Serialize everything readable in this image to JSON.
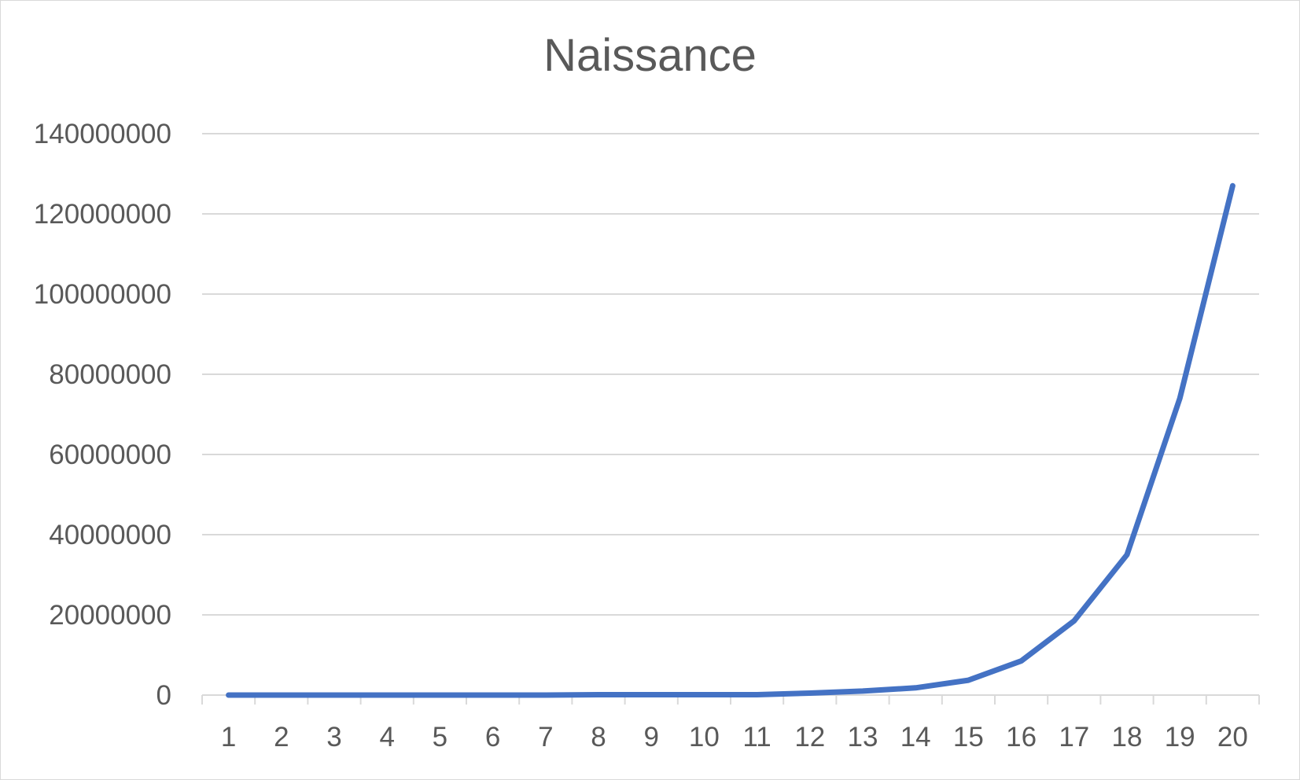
{
  "chart_data": {
    "type": "line",
    "title": "Naissance",
    "xlabel": "",
    "ylabel": "",
    "categories": [
      "1",
      "2",
      "3",
      "4",
      "5",
      "6",
      "7",
      "8",
      "9",
      "10",
      "11",
      "12",
      "13",
      "14",
      "15",
      "16",
      "17",
      "18",
      "19",
      "20"
    ],
    "series": [
      {
        "values": [
          0,
          0,
          0,
          0,
          0,
          0,
          0,
          100000,
          100000,
          100000,
          100000,
          500000,
          1000000,
          1800000,
          3700000,
          8500000,
          18500000,
          35000000,
          74000000,
          127000000
        ],
        "color": "#4472c4"
      }
    ],
    "ylim": [
      0,
      140000000
    ],
    "yticks": [
      "0",
      "20000000",
      "40000000",
      "60000000",
      "80000000",
      "100000000",
      "120000000",
      "140000000"
    ],
    "grid": true,
    "legend": "none"
  },
  "colors": {
    "series": "#4472c4",
    "grid": "#d9d9d9",
    "text": "#595959"
  }
}
